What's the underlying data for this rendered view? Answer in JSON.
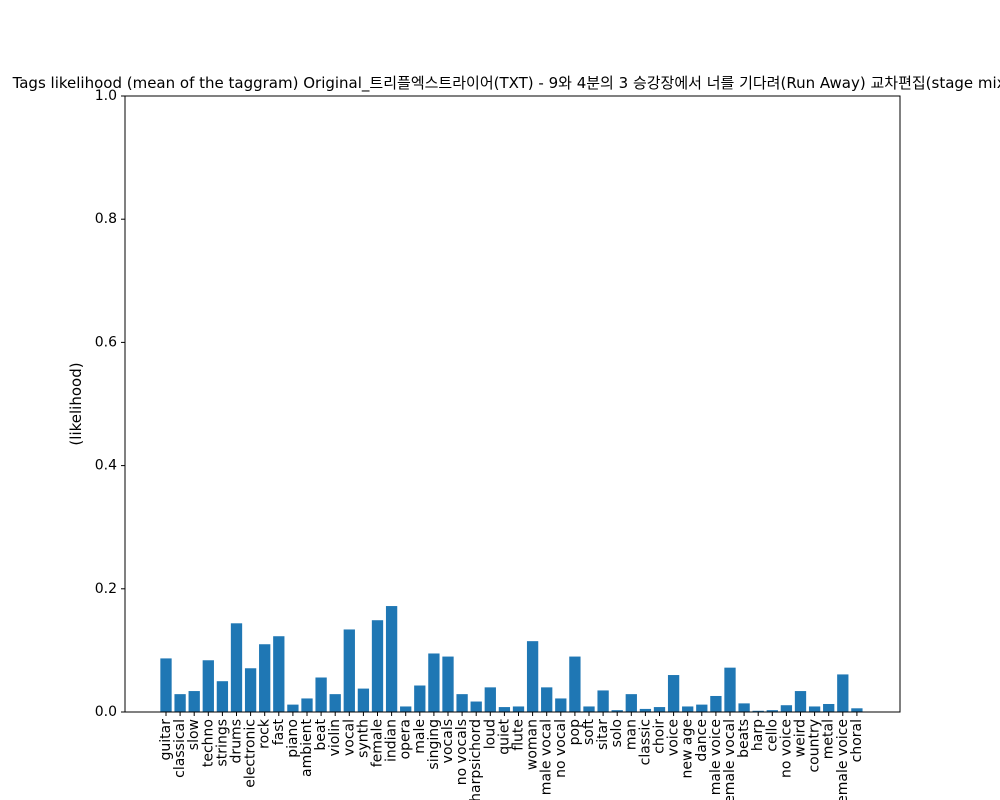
{
  "chart_data": {
    "type": "bar",
    "title": "Tags likelihood (mean of the taggram) Original_트리플엑스트라이어(TXT) - 9와 4분의 3 승강장에서 너를 기다려(Run Away) 교차편집(stage mix)",
    "xlabel": "",
    "ylabel": "(likelihood)",
    "ylim": [
      0,
      1.0
    ],
    "yticks": [
      0.0,
      0.2,
      0.4,
      0.6,
      0.8,
      1.0
    ],
    "ytick_labels": [
      "0.0",
      "0.2",
      "0.4",
      "0.6",
      "0.8",
      "1.0"
    ],
    "grid": false,
    "bar_color": "#1f77b4",
    "categories": [
      "guitar",
      "classical",
      "slow",
      "techno",
      "strings",
      "drums",
      "electronic",
      "rock",
      "fast",
      "piano",
      "ambient",
      "beat",
      "violin",
      "vocal",
      "synth",
      "female",
      "indian",
      "opera",
      "male",
      "singing",
      "vocals",
      "no vocals",
      "harpsichord",
      "loud",
      "quiet",
      "flute",
      "woman",
      "male vocal",
      "no vocal",
      "pop",
      "soft",
      "sitar",
      "solo",
      "man",
      "classic",
      "choir",
      "voice",
      "new age",
      "dance",
      "male voice",
      "female vocal",
      "beats",
      "harp",
      "cello",
      "no voice",
      "weird",
      "country",
      "metal",
      "female voice",
      "choral"
    ],
    "values": [
      0.087,
      0.029,
      0.034,
      0.084,
      0.05,
      0.144,
      0.071,
      0.11,
      0.123,
      0.012,
      0.022,
      0.056,
      0.029,
      0.134,
      0.038,
      0.149,
      0.172,
      0.009,
      0.043,
      0.095,
      0.09,
      0.029,
      0.017,
      0.04,
      0.008,
      0.009,
      0.115,
      0.04,
      0.022,
      0.09,
      0.009,
      0.035,
      0.003,
      0.029,
      0.005,
      0.008,
      0.06,
      0.009,
      0.012,
      0.026,
      0.072,
      0.014,
      0.002,
      0.003,
      0.011,
      0.034,
      0.009,
      0.013,
      0.061,
      0.006
    ]
  }
}
